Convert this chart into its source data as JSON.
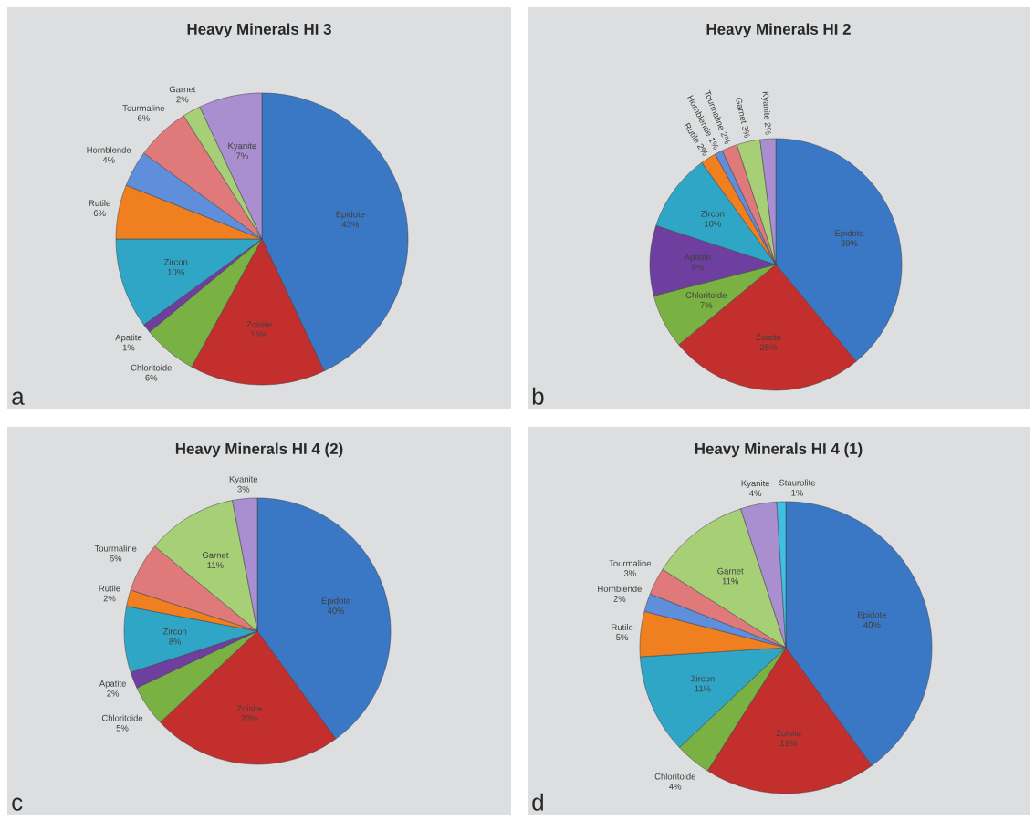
{
  "chart_data": [
    {
      "type": "pie",
      "title": "Heavy Minerals HI 3",
      "annotations": [
        "a"
      ],
      "data_labels": true,
      "categories": [
        "Epidote",
        "Zoisite",
        "Chloritoide",
        "Apatite",
        "Zircon",
        "Rutile",
        "Hornblende",
        "Tourmaline",
        "Garnet",
        "Kyanite"
      ],
      "values": [
        43,
        15,
        6,
        1,
        10,
        6,
        4,
        6,
        2,
        7
      ],
      "value_labels": [
        "43%",
        "15%",
        "6%",
        "1%",
        "10%",
        "6%",
        "4%",
        "6%",
        "2%",
        "7%"
      ],
      "colors": [
        "#3a78c6",
        "#c22f2c",
        "#79b143",
        "#6f3fa0",
        "#2fa6c6",
        "#f0801f",
        "#5f8fda",
        "#e07a7a",
        "#a6cf76",
        "#a98fd0"
      ]
    },
    {
      "type": "pie",
      "title": "Heavy Minerals HI 2",
      "annotations": [
        "b"
      ],
      "data_labels": true,
      "categories": [
        "Epidote",
        "Zoisite",
        "Chloritoide",
        "Apatite",
        "Zircon",
        "Rutile",
        "Hornblende",
        "Tourmaline",
        "Garnet",
        "Kyanite"
      ],
      "values": [
        39,
        25,
        7,
        9,
        10,
        2,
        1,
        2,
        3,
        2
      ],
      "value_labels": [
        "39%",
        "25%",
        "7%",
        "9%",
        "10%",
        "2%",
        "1%",
        "2%",
        "3%",
        "2%"
      ],
      "colors": [
        "#3a78c6",
        "#c22f2c",
        "#79b143",
        "#6f3fa0",
        "#2fa6c6",
        "#f0801f",
        "#5f8fda",
        "#e07a7a",
        "#a6cf76",
        "#a98fd0"
      ]
    },
    {
      "type": "pie",
      "title": "Heavy Minerals HI 4 (2)",
      "annotations": [
        "c"
      ],
      "data_labels": true,
      "categories": [
        "Epidote",
        "Zoisite",
        "Chloritoide",
        "Apatite",
        "Zircon",
        "Rutile",
        "Tourmaline",
        "Garnet",
        "Kyanite"
      ],
      "values": [
        40,
        23,
        5,
        2,
        8,
        2,
        6,
        11,
        3
      ],
      "value_labels": [
        "40%",
        "23%",
        "5%",
        "2%",
        "8%",
        "2%",
        "6%",
        "11%",
        "3%"
      ],
      "colors": [
        "#3a78c6",
        "#c22f2c",
        "#79b143",
        "#6f3fa0",
        "#2fa6c6",
        "#f0801f",
        "#e07a7a",
        "#a6cf76",
        "#a98fd0"
      ]
    },
    {
      "type": "pie",
      "title": "Heavy Minerals HI 4 (1)",
      "annotations": [
        "d"
      ],
      "data_labels": true,
      "categories": [
        "Epidote",
        "Zoisite",
        "Chloritoide",
        "Zircon",
        "Rutile",
        "Hornblende",
        "Tourmaline",
        "Garnet",
        "Kyanite",
        "Staurolite"
      ],
      "values": [
        40,
        19,
        4,
        11,
        5,
        2,
        3,
        11,
        4,
        1
      ],
      "value_labels": [
        "40%",
        "19%",
        "4%",
        "11%",
        "5%",
        "2%",
        "3%",
        "11%",
        "4%",
        "1%"
      ],
      "colors": [
        "#3a78c6",
        "#c22f2c",
        "#79b143",
        "#2fa6c6",
        "#f0801f",
        "#5f8fda",
        "#e07a7a",
        "#a6cf76",
        "#a98fd0",
        "#3fc0e0"
      ]
    }
  ]
}
